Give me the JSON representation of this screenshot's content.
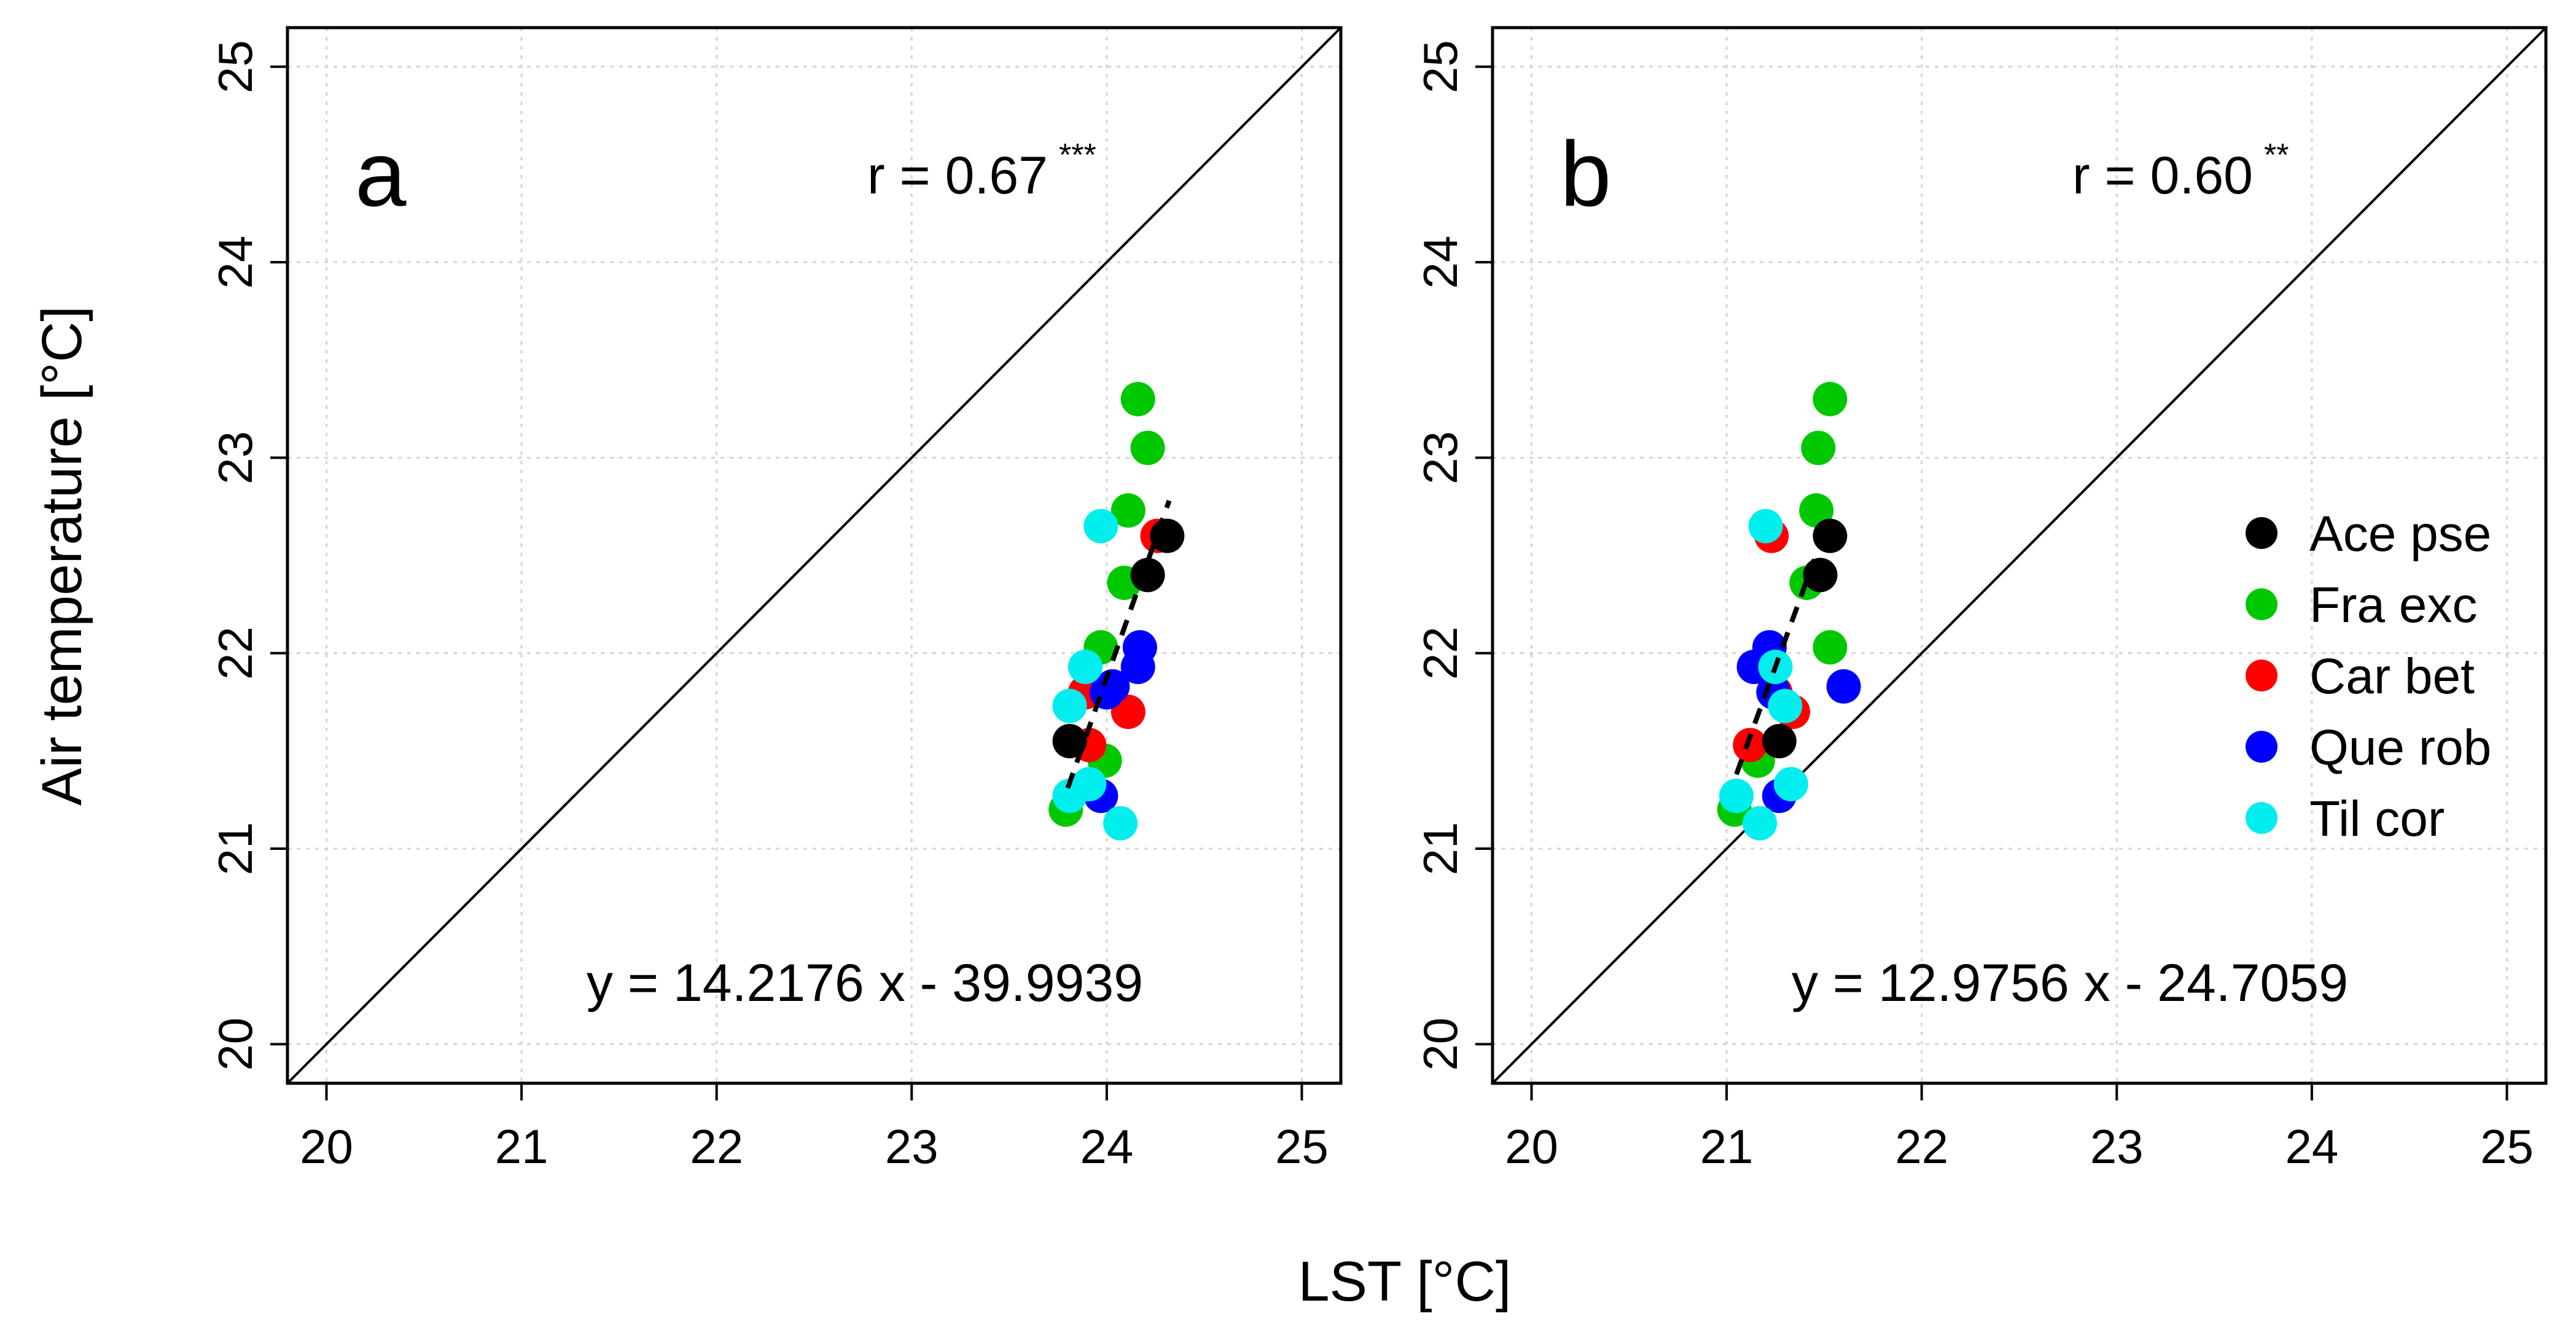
{
  "chart_data": {
    "type": "scatter",
    "shared": {
      "xlabel": "LST [°C]",
      "ylabel": "Air temperature [°C]",
      "xlim": [
        20,
        25
      ],
      "ylim": [
        20,
        25
      ],
      "xticks": [
        "20",
        "21",
        "22",
        "23",
        "24",
        "25"
      ],
      "yticks": [
        "20",
        "21",
        "22",
        "23",
        "24",
        "25"
      ],
      "grid": true,
      "identity_line": true
    },
    "legend": {
      "position": "right (panel b)",
      "entries": [
        {
          "name": "Ace pse",
          "color": "#000000"
        },
        {
          "name": "Fra exc",
          "color": "#00c800"
        },
        {
          "name": "Car bet",
          "color": "#ff0000"
        },
        {
          "name": "Que rob",
          "color": "#0000ff"
        },
        {
          "name": "Til cor",
          "color": "#00eeee"
        }
      ]
    },
    "panels": [
      {
        "letter": "a",
        "r_text": "r = 0.67",
        "stars": "***",
        "equation": "y = 14.2176 x - 39.9939",
        "fit": {
          "x": [
            23.8,
            24.32
          ],
          "y": [
            21.31,
            22.78
          ]
        },
        "series": [
          {
            "name": "Fra exc",
            "color": "#00c800",
            "x": [
              24.16,
              24.21,
              24.11,
              24.09,
              23.97,
              23.99,
              23.79
            ],
            "y": [
              23.3,
              23.05,
              22.73,
              22.36,
              22.03,
              21.45,
              21.2
            ]
          },
          {
            "name": "Car bet",
            "color": "#ff0000",
            "x": [
              24.26,
              23.89,
              24.11,
              23.91
            ],
            "y": [
              22.6,
              21.8,
              21.7,
              21.53
            ]
          },
          {
            "name": "Que rob",
            "color": "#0000ff",
            "x": [
              24.17,
              24.16,
              24.03,
              24.0,
              23.97
            ],
            "y": [
              22.03,
              21.93,
              21.83,
              21.8,
              21.27
            ]
          },
          {
            "name": "Til cor",
            "color": "#00eeee",
            "x": [
              23.97,
              23.89,
              23.81,
              23.91,
              23.81,
              24.07
            ],
            "y": [
              22.65,
              21.93,
              21.73,
              21.33,
              21.27,
              21.13
            ]
          },
          {
            "name": "Ace pse",
            "color": "#000000",
            "x": [
              24.31,
              24.21,
              23.81
            ],
            "y": [
              22.6,
              22.4,
              21.55
            ]
          }
        ]
      },
      {
        "letter": "b",
        "r_text": "r = 0.60",
        "stars": "**",
        "equation": "y = 12.9756 x - 24.7059",
        "fit": {
          "x": [
            21.05,
            21.45
          ],
          "y": [
            21.38,
            22.48
          ]
        },
        "series": [
          {
            "name": "Fra exc",
            "color": "#00c800",
            "x": [
              21.53,
              21.47,
              21.46,
              21.41,
              21.53,
              21.16,
              21.04
            ],
            "y": [
              23.3,
              23.05,
              22.73,
              22.36,
              22.03,
              21.45,
              21.2
            ]
          },
          {
            "name": "Car bet",
            "color": "#ff0000",
            "x": [
              21.23,
              21.25,
              21.34,
              21.12
            ],
            "y": [
              22.6,
              21.8,
              21.7,
              21.53
            ]
          },
          {
            "name": "Que rob",
            "color": "#0000ff",
            "x": [
              21.22,
              21.14,
              21.6,
              21.24,
              21.27
            ],
            "y": [
              22.03,
              21.93,
              21.83,
              21.8,
              21.27
            ]
          },
          {
            "name": "Til cor",
            "color": "#00eeee",
            "x": [
              21.2,
              21.25,
              21.3,
              21.33,
              21.05,
              21.17
            ],
            "y": [
              22.65,
              21.93,
              21.73,
              21.33,
              21.27,
              21.13
            ]
          },
          {
            "name": "Ace pse",
            "color": "#000000",
            "x": [
              21.53,
              21.48,
              21.27
            ],
            "y": [
              22.6,
              22.4,
              21.55
            ]
          }
        ]
      }
    ]
  }
}
